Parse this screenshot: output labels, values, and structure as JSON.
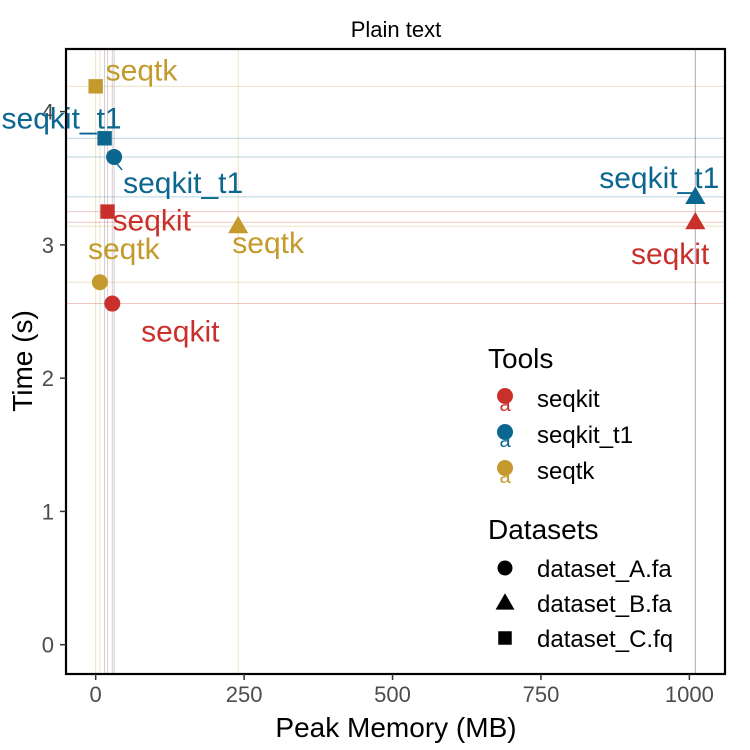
{
  "chart_data": {
    "type": "scatter",
    "title": "Plain text",
    "xlabel": "Peak Memory (MB)",
    "ylabel": "Time (s)",
    "xlim": [
      -50,
      1060
    ],
    "ylim": [
      -0.22,
      4.47
    ],
    "xticks": [
      0,
      250,
      500,
      750,
      1000
    ],
    "yticks": [
      0,
      1,
      2,
      3,
      4
    ],
    "grid": false,
    "legend_position": "bottom-right",
    "colors": {
      "seqkit": "#c9302c",
      "seqkit_t1": "#0b6690",
      "seqtk": "#c49a2c"
    },
    "points": [
      {
        "tool": "seqkit",
        "dataset": "dataset_A.fa",
        "x": 28,
        "y": 2.56
      },
      {
        "tool": "seqkit",
        "dataset": "dataset_B.fa",
        "x": 1010,
        "y": 3.17
      },
      {
        "tool": "seqkit",
        "dataset": "dataset_C.fq",
        "x": 20,
        "y": 3.25
      },
      {
        "tool": "seqkit_t1",
        "dataset": "dataset_A.fa",
        "x": 31,
        "y": 3.66
      },
      {
        "tool": "seqkit_t1",
        "dataset": "dataset_B.fa",
        "x": 1010,
        "y": 3.36
      },
      {
        "tool": "seqkit_t1",
        "dataset": "dataset_C.fq",
        "x": 15,
        "y": 3.8
      },
      {
        "tool": "seqtk",
        "dataset": "dataset_A.fa",
        "x": 7,
        "y": 2.72
      },
      {
        "tool": "seqtk",
        "dataset": "dataset_B.fa",
        "x": 240,
        "y": 3.14
      },
      {
        "tool": "seqtk",
        "dataset": "dataset_C.fq",
        "x": 0,
        "y": 4.19
      }
    ],
    "legend": {
      "tools_title": "Tools",
      "tools": [
        "seqkit",
        "seqkit_t1",
        "seqtk"
      ],
      "datasets_title": "Datasets",
      "datasets": [
        {
          "name": "dataset_A.fa",
          "shape": "circle"
        },
        {
          "name": "dataset_B.fa",
          "shape": "triangle"
        },
        {
          "name": "dataset_C.fq",
          "shape": "square"
        }
      ]
    }
  }
}
